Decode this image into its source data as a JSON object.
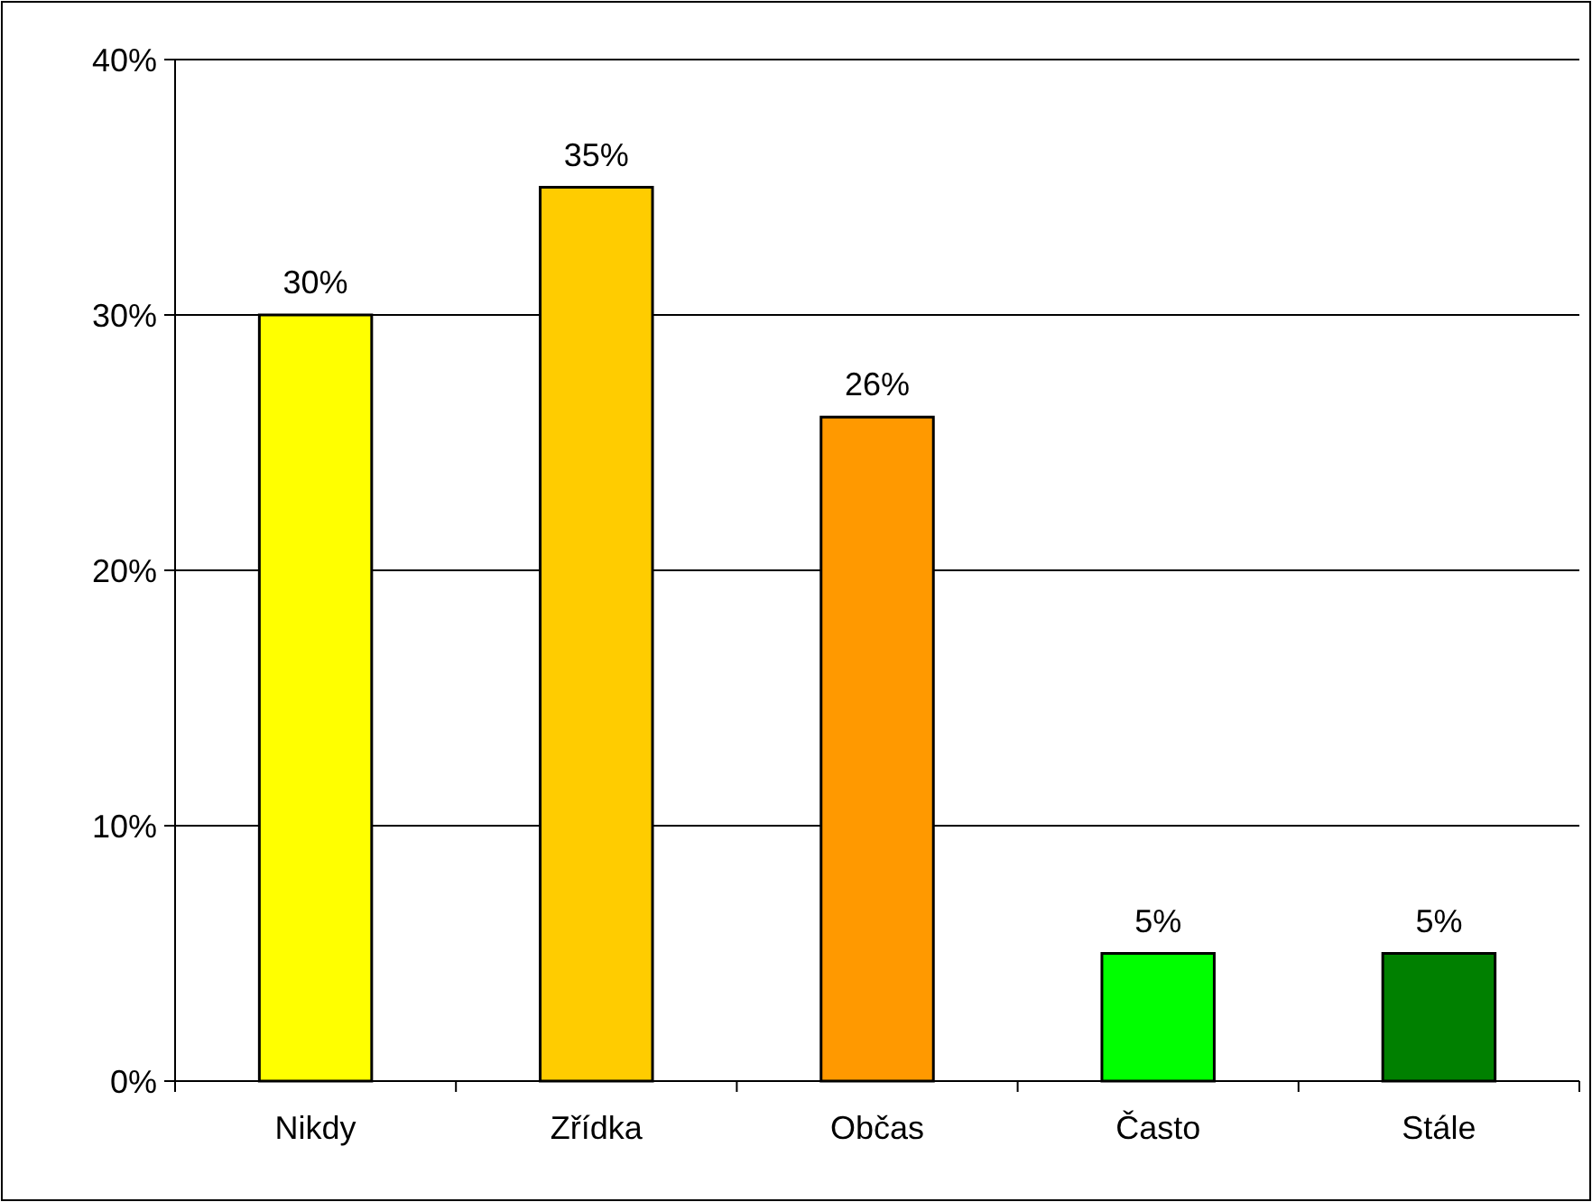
{
  "chart_data": {
    "type": "bar",
    "categories": [
      "Nikdy",
      "Zřídka",
      "Občas",
      "Často",
      "Stále"
    ],
    "values": [
      30,
      35,
      26,
      5,
      5
    ],
    "colors": [
      "#ffff00",
      "#ffcc00",
      "#ff9900",
      "#00ff00",
      "#008000"
    ],
    "value_labels": [
      "30%",
      "35%",
      "26%",
      "5%",
      "5%"
    ],
    "ylim": [
      0,
      40
    ],
    "yticks": [
      {
        "value": 0,
        "label": "0%"
      },
      {
        "value": 10,
        "label": "10%"
      },
      {
        "value": 20,
        "label": "20%"
      },
      {
        "value": 30,
        "label": "30%"
      },
      {
        "value": 40,
        "label": "40%"
      }
    ],
    "grid": "y"
  }
}
